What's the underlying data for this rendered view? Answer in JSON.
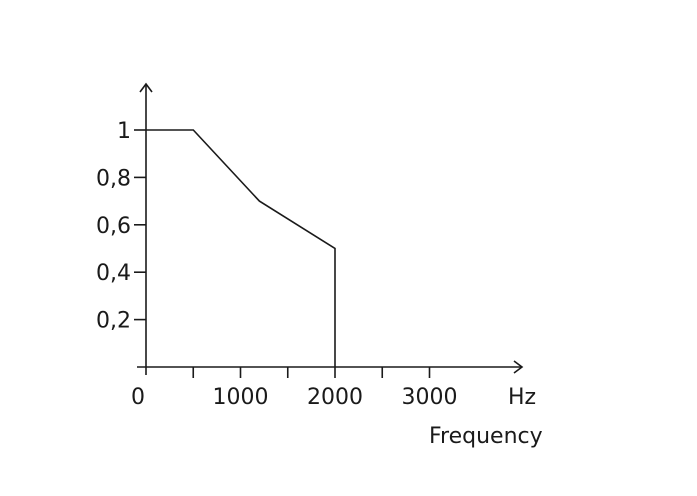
{
  "chart_data": {
    "type": "line",
    "title": "",
    "xlabel": "Frequency",
    "x_unit": "Hz",
    "ylabel": "",
    "xlim": [
      0,
      4000
    ],
    "ylim": [
      0,
      1.15
    ],
    "x_tick_labels": [
      "0",
      "1000",
      "2000",
      "3000"
    ],
    "x_tick_values": [
      0,
      1000,
      2000,
      3000
    ],
    "x_minor_ticks": [
      500,
      1500,
      2500
    ],
    "y_tick_labels": [
      "0,2",
      "0,4",
      "0,6",
      "0,8",
      "1"
    ],
    "y_tick_values": [
      0.2,
      0.4,
      0.6,
      0.8,
      1.0
    ],
    "grid": false,
    "series": [
      {
        "x": [
          0,
          500,
          1200,
          2000,
          2000
        ],
        "y": [
          1.0,
          1.0,
          0.7,
          0.5,
          0.0
        ]
      }
    ]
  }
}
